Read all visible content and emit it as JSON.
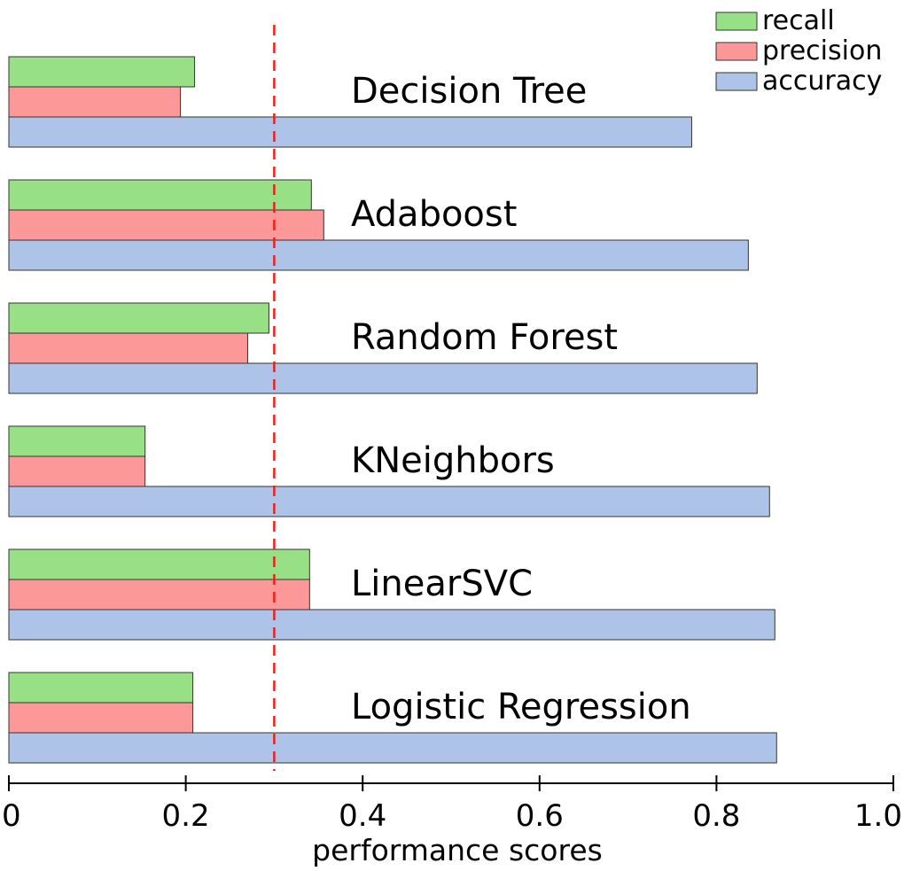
{
  "chart_data": {
    "type": "bar",
    "orientation": "horizontal",
    "categories": [
      "Decision Tree",
      "Adaboost",
      "Random Forest",
      "KNeighbors",
      "LinearSVC",
      "Logistic Regression"
    ],
    "series": [
      {
        "name": "recall",
        "color": "#98e085",
        "values": [
          0.21,
          0.342,
          0.294,
          0.154,
          0.34,
          0.208
        ]
      },
      {
        "name": "precision",
        "color": "#fc9898",
        "values": [
          0.194,
          0.356,
          0.27,
          0.154,
          0.34,
          0.208
        ]
      },
      {
        "name": "accuracy",
        "color": "#adc4e8",
        "values": [
          0.772,
          0.836,
          0.846,
          0.86,
          0.866,
          0.868
        ]
      }
    ],
    "xlabel": "performance scores",
    "ylabel": "",
    "xlim": [
      0,
      1.0
    ],
    "xticks": [
      "0",
      "0.2",
      "0.4",
      "0.6",
      "0.8",
      "1.0"
    ],
    "reference_line": {
      "x": 0.3,
      "style": "dashed",
      "color": "#e8231c"
    },
    "legend": {
      "position": "top-right",
      "entries": [
        "recall",
        "precision",
        "accuracy"
      ]
    },
    "grid": false
  }
}
